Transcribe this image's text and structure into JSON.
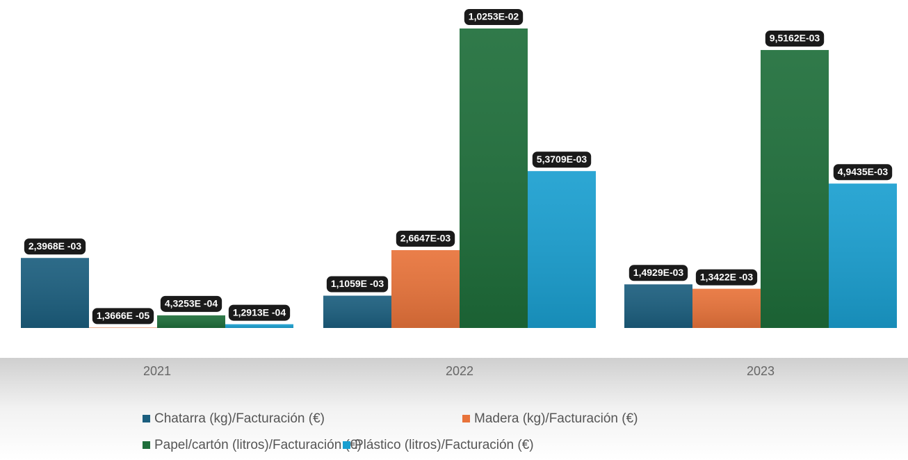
{
  "chart_data": {
    "type": "bar",
    "categories": [
      "2021",
      "2022",
      "2023"
    ],
    "series": [
      {
        "name": "Chatarra (kg)/Facturación (€)",
        "color": "#1b5e7e",
        "values": [
          0.0023968,
          0.0011059,
          0.0014929
        ],
        "value_labels": [
          "2,3968E -03",
          "1,1059E -03",
          "1,4929E-03"
        ]
      },
      {
        "name": "Madera (kg)/Facturación (€)",
        "color": "#e8733a",
        "values": [
          1.3666e-05,
          0.0026647,
          0.0013422
        ],
        "value_labels": [
          "1,3666E -05",
          "2,6647E-03",
          "1,3422E -03"
        ]
      },
      {
        "name": "Papel/cartón (litros)/Facturación (€)",
        "color": "#1e6e3a",
        "values": [
          0.00043253,
          0.010253,
          0.0095162
        ],
        "value_labels": [
          "4,3253E -04",
          "1,0253E-02",
          "9,5162E-03"
        ]
      },
      {
        "name": "Plástico (litros)/Facturación (€)",
        "color": "#1a9fd0",
        "values": [
          0.00012913,
          0.0053709,
          0.0049435
        ],
        "value_labels": [
          "1,2913E -04",
          "5,3709E-03",
          "4,9435E-03"
        ]
      }
    ]
  }
}
